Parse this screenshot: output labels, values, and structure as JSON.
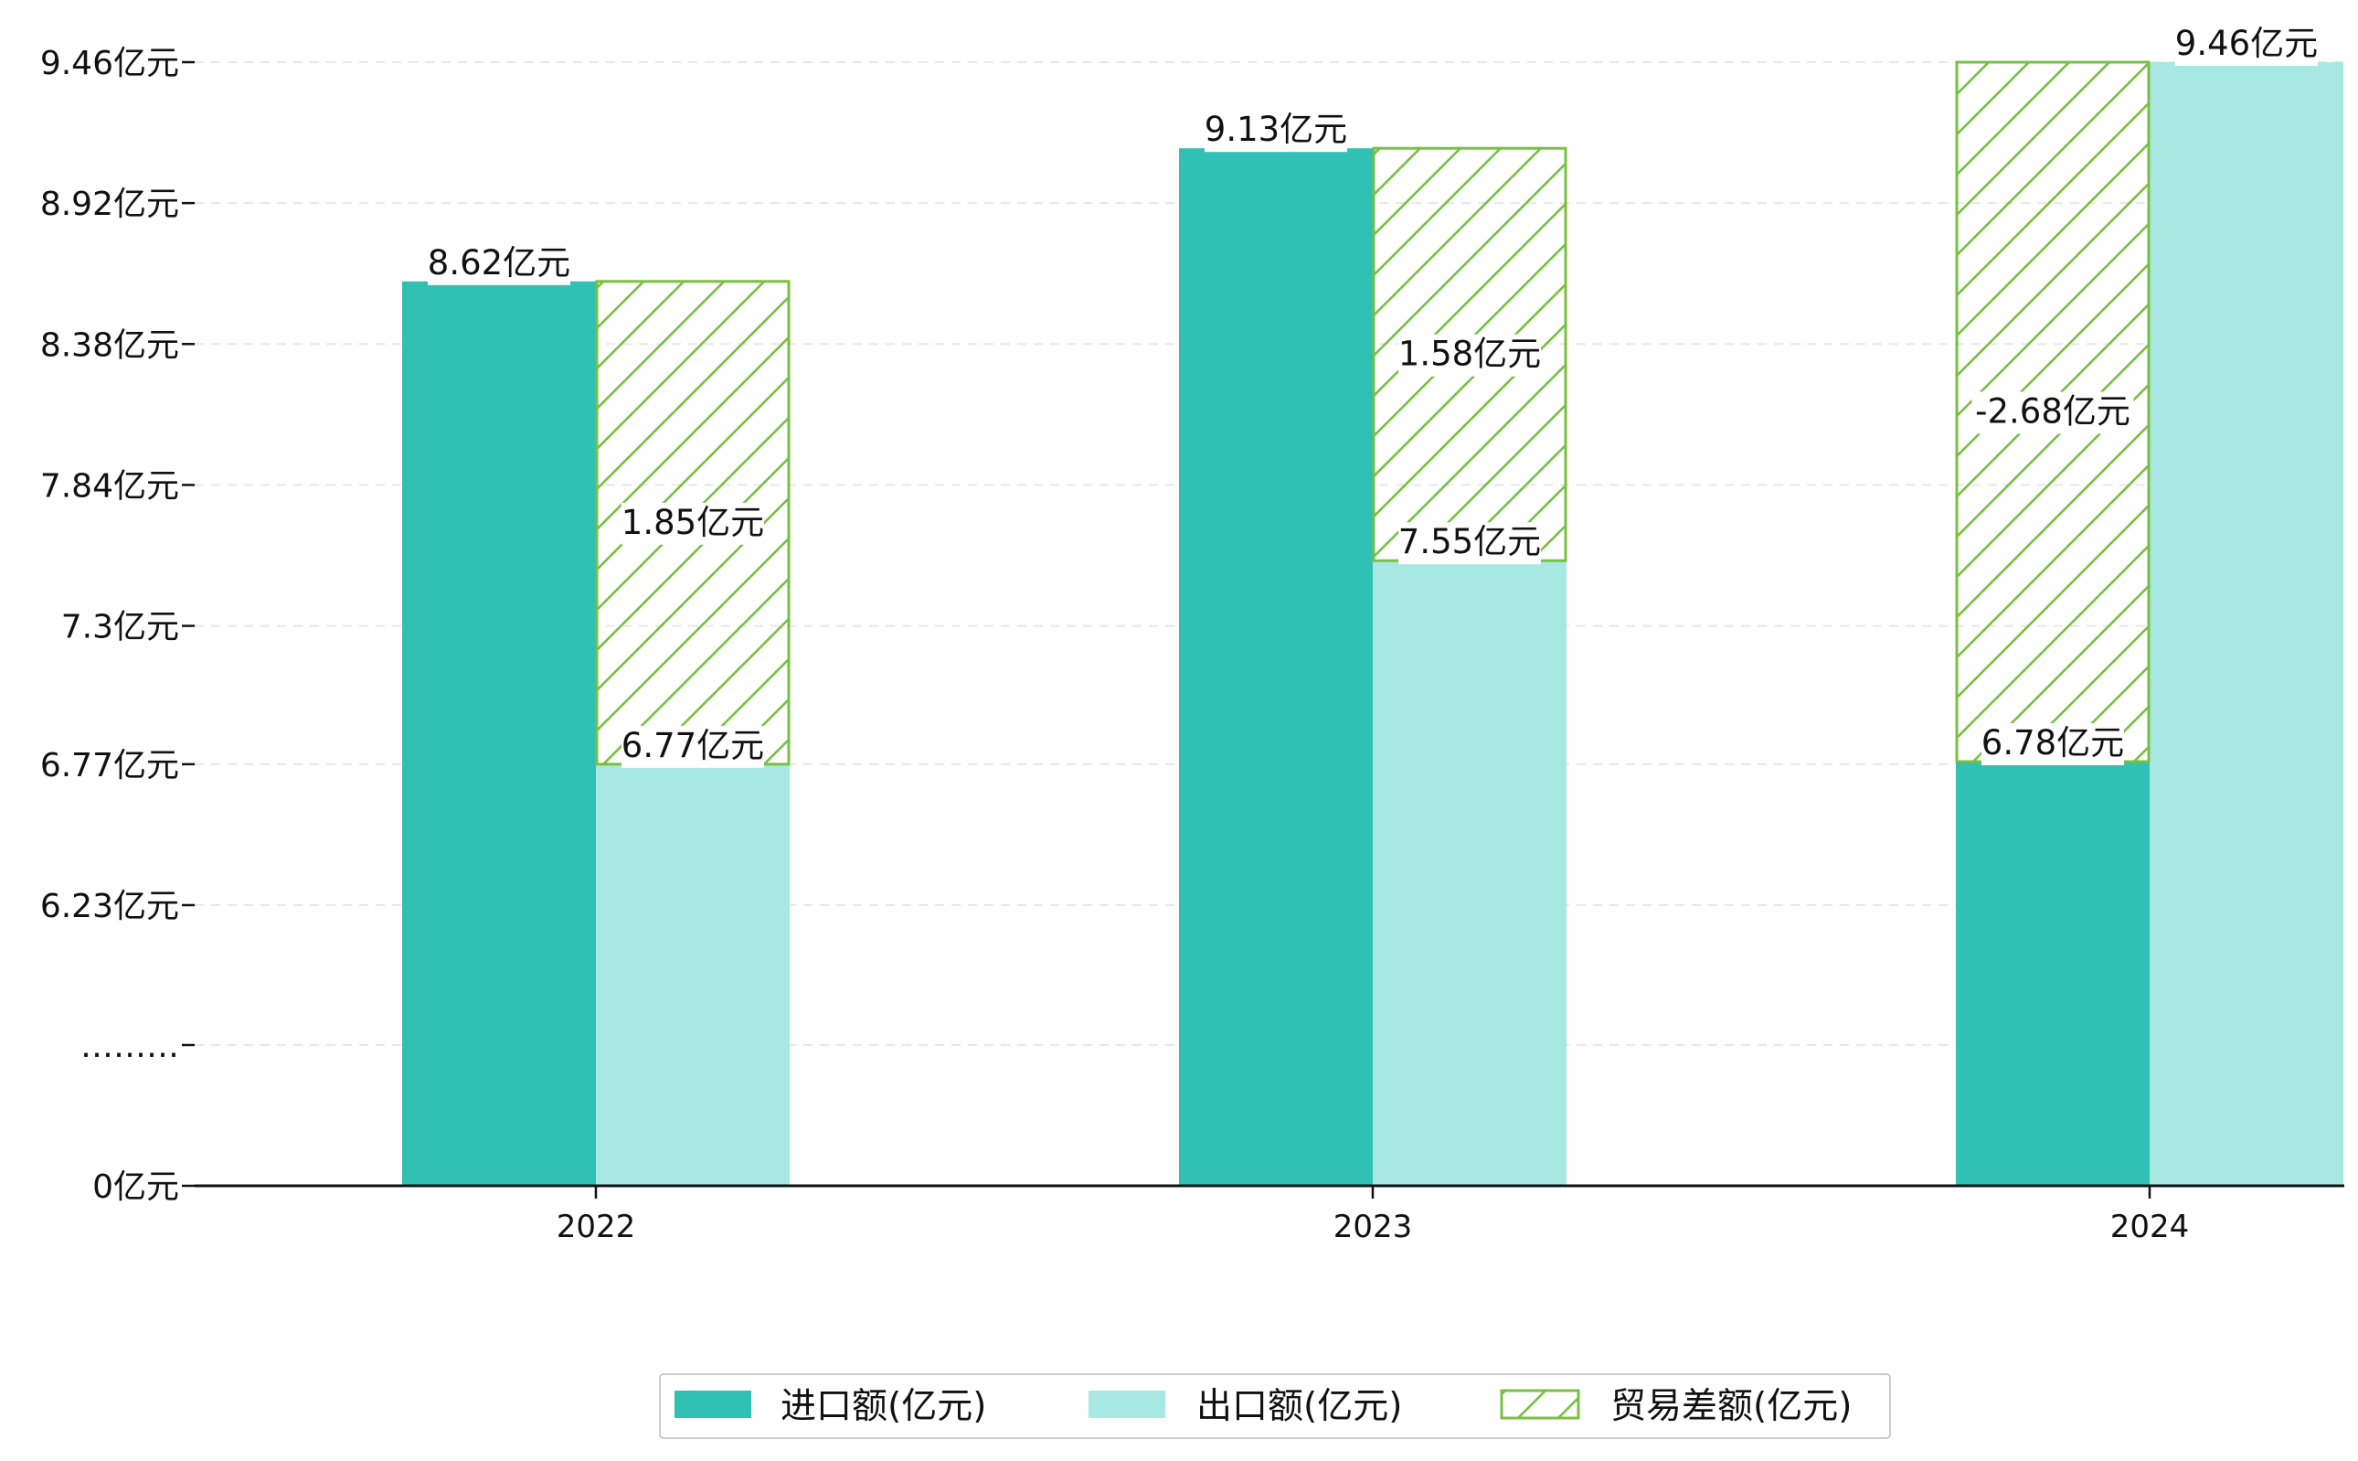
{
  "chart_data": {
    "type": "bar",
    "title": "",
    "xlabel": "",
    "ylabel": "",
    "categories": [
      "2022",
      "2023",
      "2024"
    ],
    "y_ticks": [
      "9.46亿元",
      "8.92亿元",
      "8.38亿元",
      "7.84亿元",
      "7.3亿元",
      "6.77亿元",
      "6.23亿元",
      "………",
      "0亿元"
    ],
    "y_tick_values": [
      9.46,
      8.92,
      8.38,
      7.84,
      7.3,
      6.77,
      6.23,
      null,
      0
    ],
    "axis_break": true,
    "ylim": [
      0,
      9.46
    ],
    "grid": true,
    "series": [
      {
        "name": "进口额(亿元)",
        "values": [
          8.62,
          9.13,
          6.78
        ],
        "labels": [
          "8.62亿元",
          "9.13亿元",
          "6.78亿元"
        ]
      },
      {
        "name": "出口额(亿元)",
        "values": [
          6.77,
          7.55,
          9.46
        ],
        "labels": [
          "6.77亿元",
          "7.55亿元",
          "9.46亿元"
        ]
      },
      {
        "name": "贸易差额(亿元)",
        "values": [
          1.85,
          1.58,
          -2.68
        ],
        "labels": [
          "1.85亿元",
          "1.58亿元",
          "-2.68亿元"
        ]
      }
    ],
    "colors": {
      "import": "#31C0B4",
      "export": "#A8E8E2",
      "balance": "#78C043",
      "axis": "#000000",
      "grid": "#e8e8e8"
    },
    "legend_position": "bottom-center"
  }
}
